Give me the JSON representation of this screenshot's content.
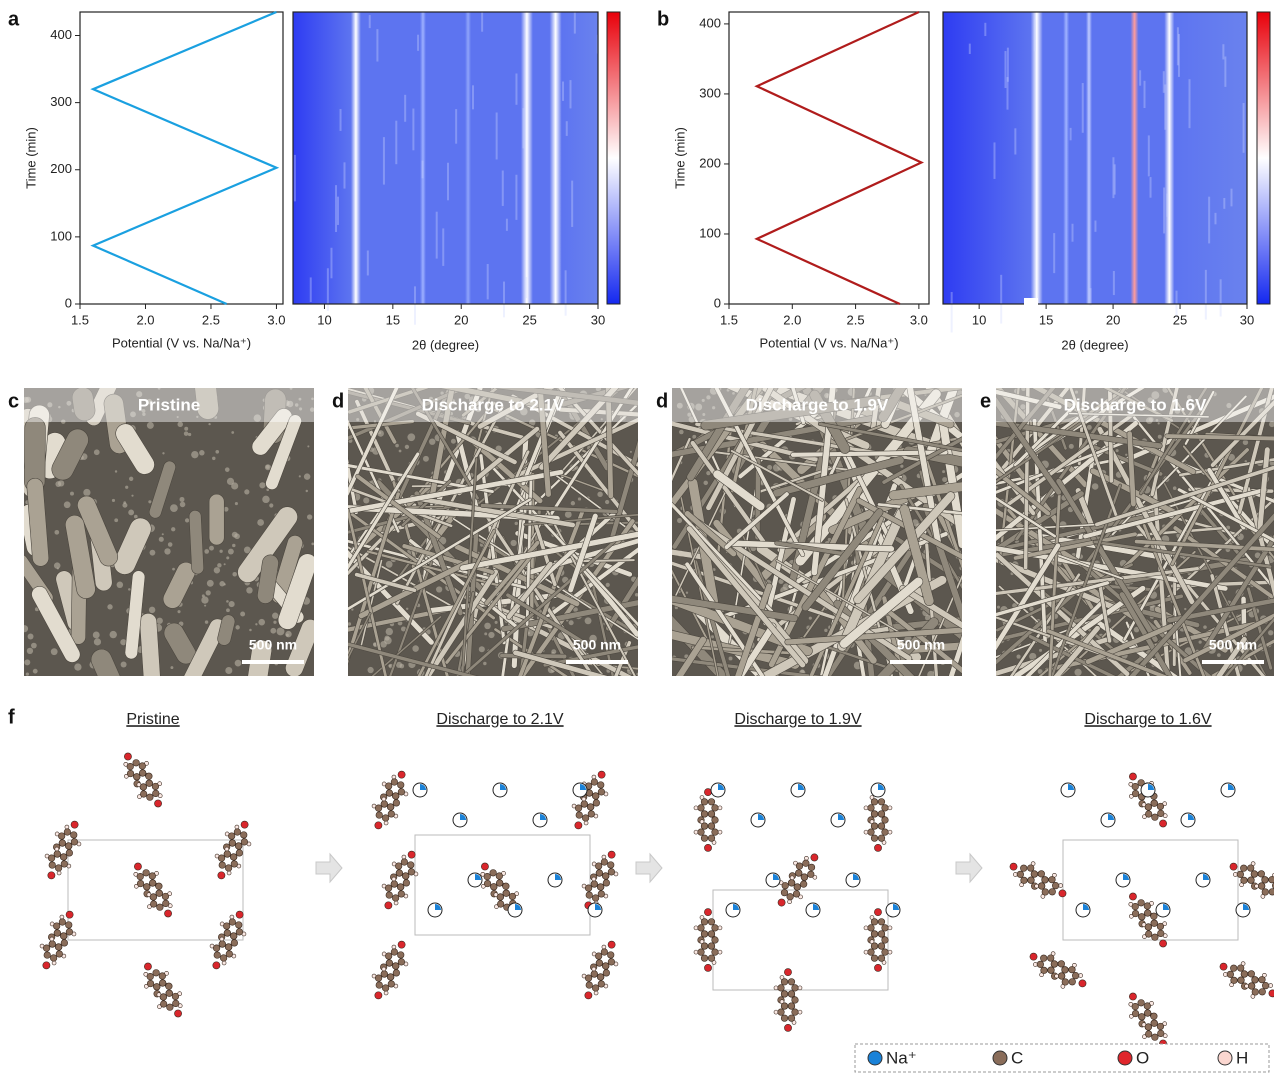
{
  "chart_data": [
    {
      "type": "line",
      "label": "a",
      "x": [
        2.62,
        1.6,
        3.0,
        1.6,
        3.0
      ],
      "values": [
        0,
        87,
        203,
        320,
        435
      ],
      "color": "#1aa0e0",
      "xlim": [
        1.5,
        3.05
      ],
      "xticks": [
        1.5,
        {
          "value": 2,
          "label": "2.0"
        },
        2.5,
        {
          "value": 3,
          "label": "3.0"
        }
      ],
      "ylim": [
        0,
        435
      ],
      "yticks": [
        0,
        100,
        200,
        300,
        400
      ],
      "xlabel": "Potential (V vs. Na/Na⁺)",
      "ylabel": "Time (min)"
    },
    {
      "type": "heatmap",
      "xlim": [
        7.7,
        30
      ],
      "xticks": [
        10,
        15,
        20,
        25,
        30
      ],
      "xlabel": "2θ (degree)"
    },
    {
      "type": "line",
      "label": "b",
      "x": [
        2.85,
        1.72,
        3.02,
        1.72,
        3.0
      ],
      "values": [
        0,
        93,
        202,
        311,
        417
      ],
      "color": "#b01c1c",
      "xlim": [
        1.5,
        3.08
      ],
      "xticks": [
        1.5,
        {
          "value": 2,
          "label": "2.0"
        },
        2.5,
        {
          "value": 3,
          "label": "3.0"
        }
      ],
      "ylim": [
        0,
        417
      ],
      "yticks": [
        0,
        100,
        200,
        300,
        400
      ],
      "xlabel": "Potential (V vs. Na/Na⁺)",
      "ylabel": "Time (min)"
    },
    {
      "type": "heatmap",
      "xlim": [
        7.3,
        30
      ],
      "xticks": [
        10,
        15,
        20,
        25,
        30
      ],
      "xlabel": "2θ (degree)"
    }
  ],
  "sem_panels": [
    {
      "label": "c",
      "title": "Pristine",
      "scale_bar": "500 nm"
    },
    {
      "label": "d",
      "title": "Discharge to 2.1V",
      "scale_bar": "500 nm"
    },
    {
      "label": "d",
      "title": "Discharge to 1.9V",
      "scale_bar": "500 nm"
    },
    {
      "label": "e",
      "title": "Discharge to 1.6V",
      "scale_bar": "500 nm"
    }
  ],
  "structures": {
    "label": "f",
    "titles": [
      "Pristine",
      "Discharge to 2.1V",
      "Discharge to 1.9V",
      "Discharge to 1.6V"
    ],
    "legend": [
      "Na⁺",
      "C",
      "O",
      "H"
    ]
  }
}
